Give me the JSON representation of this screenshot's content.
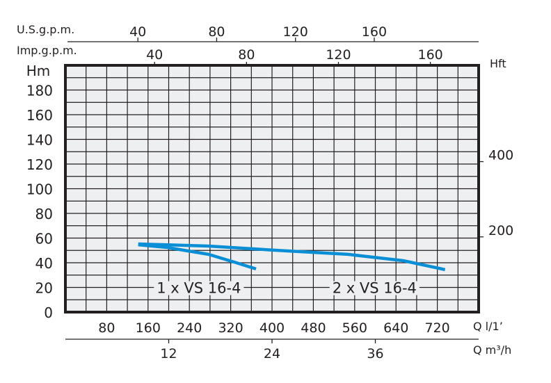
{
  "chart_data": {
    "type": "line",
    "title": "",
    "xlabel": "Q l/1’",
    "ylabel": "Hm",
    "xlim": [
      0,
      800
    ],
    "ylim": [
      0,
      200
    ],
    "grid": true,
    "x_ticks": [
      80,
      160,
      240,
      320,
      400,
      480,
      560,
      640,
      720
    ],
    "y_ticks": [
      0,
      20,
      40,
      60,
      80,
      100,
      120,
      140,
      160,
      180
    ],
    "secondary_axes": {
      "us_gpm": {
        "label": "U.S.g.p.m.",
        "ticks": [
          40,
          80,
          120,
          160
        ],
        "range": [
          3.2,
          213
        ]
      },
      "imp_gpm": {
        "label": "Imp.g.p.m.",
        "ticks": [
          40,
          80,
          120,
          160
        ],
        "range": [
          1.2,
          181
        ]
      },
      "m3h": {
        "label": "Q m³/h",
        "ticks": [
          12,
          24,
          36
        ],
        "range": [
          0,
          48
        ]
      },
      "hft": {
        "label": "Hft",
        "ticks": [
          200,
          400
        ],
        "range": [
          0,
          656
        ]
      }
    },
    "series": [
      {
        "name": "1 x VS 16-4",
        "color": "#0a8fd6",
        "x": [
          141,
          197,
          277,
          331,
          369
        ],
        "y": [
          54.6,
          52.4,
          46.8,
          40,
          35
        ],
        "label_at": [
          340,
          20
        ]
      },
      {
        "name": "2 x VS 16-4",
        "color": "#0a8fd6",
        "x": [
          141,
          277,
          412,
          547,
          654,
          735
        ],
        "y": [
          55.2,
          53.5,
          50,
          46.8,
          41.7,
          34.4
        ],
        "label_at": [
          680,
          20
        ]
      }
    ]
  }
}
